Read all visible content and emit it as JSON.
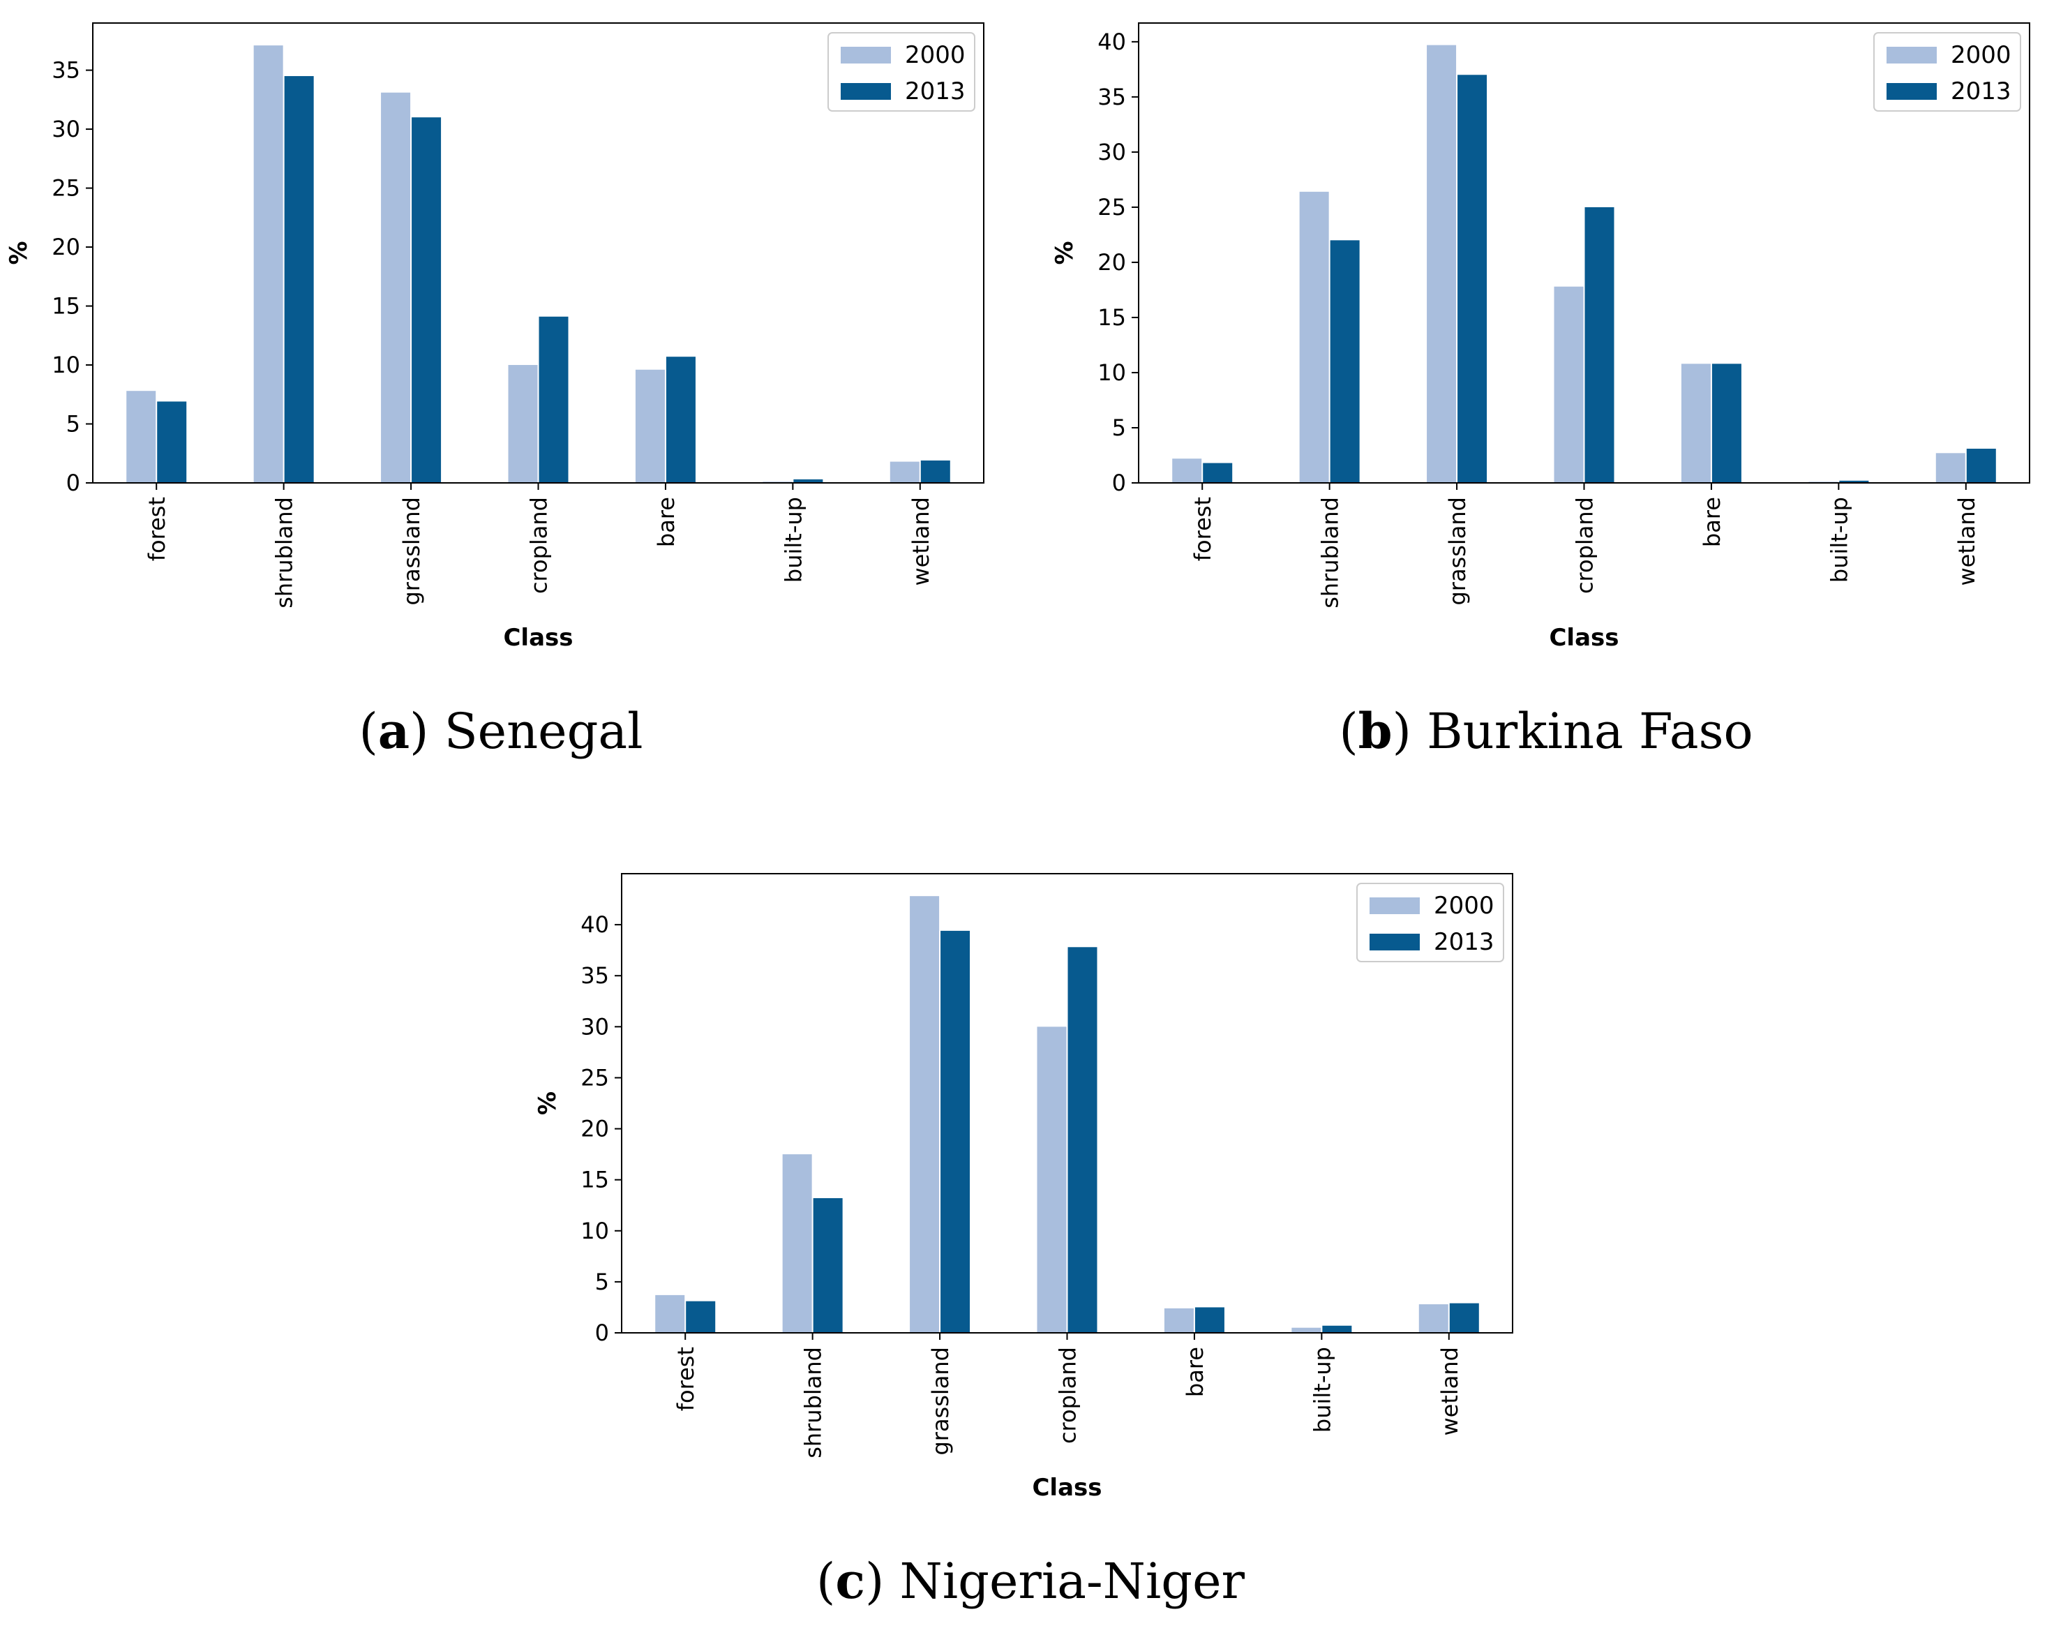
{
  "chart_data": [
    {
      "type": "bar",
      "title": "",
      "caption_letter": "a",
      "caption_name": "Senegal",
      "xlabel": "Class",
      "ylabel": "%",
      "ylim": [
        0,
        39
      ],
      "yticks": [
        0,
        5,
        10,
        15,
        20,
        25,
        30,
        35
      ],
      "legend_position": "top-right",
      "categories": [
        "forest",
        "shrubland",
        "grassland",
        "cropland",
        "bare",
        "built-up",
        "wetland"
      ],
      "series": [
        {
          "name": "2000",
          "values": [
            7.8,
            37.1,
            33.1,
            10.0,
            9.6,
            0.1,
            1.8
          ]
        },
        {
          "name": "2013",
          "values": [
            6.9,
            34.5,
            31.0,
            14.1,
            10.7,
            0.3,
            1.9
          ]
        }
      ]
    },
    {
      "type": "bar",
      "title": "",
      "caption_letter": "b",
      "caption_name": "Burkina Faso",
      "xlabel": "Class",
      "ylabel": "%",
      "ylim": [
        0,
        41.7
      ],
      "yticks": [
        0,
        5,
        10,
        15,
        20,
        25,
        30,
        35,
        40
      ],
      "legend_position": "top-right",
      "categories": [
        "forest",
        "shrubland",
        "grassland",
        "cropland",
        "bare",
        "built-up",
        "wetland"
      ],
      "series": [
        {
          "name": "2000",
          "values": [
            2.2,
            26.4,
            39.7,
            17.8,
            10.8,
            0.1,
            2.7
          ]
        },
        {
          "name": "2013",
          "values": [
            1.8,
            22.0,
            37.0,
            25.0,
            10.8,
            0.2,
            3.1
          ]
        }
      ]
    },
    {
      "type": "bar",
      "title": "",
      "caption_letter": "c",
      "caption_name": "Nigeria-Niger",
      "xlabel": "Class",
      "ylabel": "%",
      "ylim": [
        0,
        45
      ],
      "yticks": [
        0,
        5,
        10,
        15,
        20,
        25,
        30,
        35,
        40
      ],
      "legend_position": "top-right",
      "categories": [
        "forest",
        "shrubland",
        "grassland",
        "cropland",
        "bare",
        "built-up",
        "wetland"
      ],
      "series": [
        {
          "name": "2000",
          "values": [
            3.7,
            17.5,
            42.8,
            30.0,
            2.4,
            0.5,
            2.8
          ]
        },
        {
          "name": "2013",
          "values": [
            3.1,
            13.2,
            39.4,
            37.8,
            2.5,
            0.7,
            2.9
          ]
        }
      ]
    }
  ],
  "colors": {
    "series_2000": "#a9bedd",
    "series_2013": "#075a8f"
  }
}
